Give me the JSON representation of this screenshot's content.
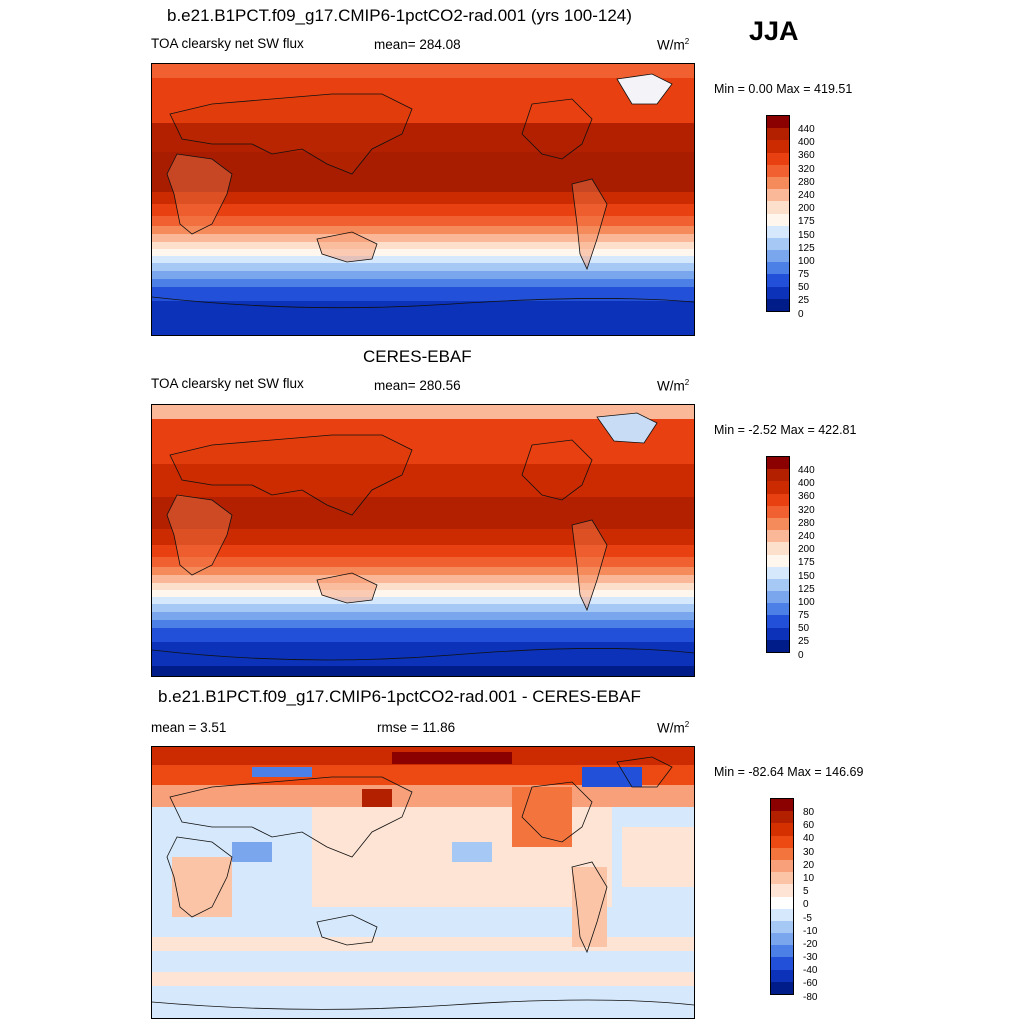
{
  "season": "JJA",
  "panels": [
    {
      "title": "b.e21.B1PCT.f09_g17.CMIP6-1pctCO2-rad.001 (yrs 100-124)",
      "left_label": "TOA clearsky net SW flux",
      "center_label": "mean= 284.08",
      "units": "W/m",
      "units_sup": "2",
      "minmax": "Min =   0.00 Max = 419.51",
      "colorbar": {
        "labels": [
          "440",
          "400",
          "360",
          "320",
          "280",
          "240",
          "200",
          "175",
          "150",
          "125",
          "100",
          "75",
          "50",
          "25",
          "0"
        ],
        "colors": [
          "#8b0000",
          "#b22000",
          "#cc2a00",
          "#e84010",
          "#f06030",
          "#f58a5a",
          "#fbb898",
          "#fde0cc",
          "#fff6ee",
          "#d6e8fb",
          "#a6c8f5",
          "#7aa6ee",
          "#4c80e6",
          "#2350d8",
          "#0b32b8",
          "#001c88"
        ]
      },
      "map_data": {
        "field": "TOA clearsky net SW flux",
        "units": "W/m2",
        "mean": 284.08,
        "min": 0.0,
        "max": 419.51,
        "bands_north_to_south": [
          {
            "from": 90,
            "to": 80,
            "value_range": "280-320"
          },
          {
            "from": 80,
            "to": 60,
            "value_range": "320-360"
          },
          {
            "from": 60,
            "to": 45,
            "value_range": "360-400"
          },
          {
            "from": 45,
            "to": 10,
            "value_range": "400-440"
          },
          {
            "from": 10,
            "to": -10,
            "value_range": "320-360"
          },
          {
            "from": -10,
            "to": -25,
            "value_range": "280-320"
          },
          {
            "from": -25,
            "to": -35,
            "value_range": "200-280"
          },
          {
            "from": -35,
            "to": -45,
            "value_range": "150-200"
          },
          {
            "from": -45,
            "to": -55,
            "value_range": "75-150"
          },
          {
            "from": -55,
            "to": -90,
            "value_range": "0-75"
          }
        ]
      }
    },
    {
      "title": "CERES-EBAF",
      "left_label": "TOA clearsky net SW flux",
      "center_label": "mean= 280.56",
      "units": "W/m",
      "units_sup": "2",
      "minmax": "Min =  -2.52 Max = 422.81",
      "colorbar": {
        "labels": [
          "440",
          "400",
          "360",
          "320",
          "280",
          "240",
          "200",
          "175",
          "150",
          "125",
          "100",
          "75",
          "50",
          "25",
          "0"
        ],
        "colors": [
          "#8b0000",
          "#b22000",
          "#cc2a00",
          "#e84010",
          "#f06030",
          "#f58a5a",
          "#fbb898",
          "#fde0cc",
          "#fff6ee",
          "#d6e8fb",
          "#a6c8f5",
          "#7aa6ee",
          "#4c80e6",
          "#2350d8",
          "#0b32b8",
          "#001c88"
        ]
      },
      "map_data": {
        "field": "TOA clearsky net SW flux",
        "units": "W/m2",
        "mean": 280.56,
        "min": -2.52,
        "max": 422.81,
        "bands_north_to_south": [
          {
            "from": 90,
            "to": 80,
            "value_range": "240-280"
          },
          {
            "from": 80,
            "to": 60,
            "value_range": "320-360"
          },
          {
            "from": 60,
            "to": 45,
            "value_range": "360-400"
          },
          {
            "from": 45,
            "to": 10,
            "value_range": "400-440"
          },
          {
            "from": 10,
            "to": -10,
            "value_range": "320-360"
          },
          {
            "from": -10,
            "to": -25,
            "value_range": "280-320"
          },
          {
            "from": -25,
            "to": -35,
            "value_range": "200-280"
          },
          {
            "from": -35,
            "to": -45,
            "value_range": "150-200"
          },
          {
            "from": -45,
            "to": -55,
            "value_range": "75-150"
          },
          {
            "from": -55,
            "to": -90,
            "value_range": "0-75"
          }
        ]
      }
    },
    {
      "title": "b.e21.B1PCT.f09_g17.CMIP6-1pctCO2-rad.001 - CERES-EBAF",
      "left_label": "mean =   3.51",
      "center_label": "rmse =  11.86",
      "units": "W/m",
      "units_sup": "2",
      "minmax": "Min = -82.64 Max = 146.69",
      "colorbar": {
        "labels": [
          "80",
          "60",
          "40",
          "30",
          "20",
          "10",
          "5",
          "0",
          "-5",
          "-10",
          "-20",
          "-30",
          "-40",
          "-60",
          "-80"
        ],
        "colors": [
          "#8b0000",
          "#b22000",
          "#d43000",
          "#ec4a12",
          "#f4743e",
          "#f8a07a",
          "#fbc4a6",
          "#fde4d4",
          "#ffffff",
          "#d6e8fb",
          "#a6c8f5",
          "#7aa6ee",
          "#4c80e6",
          "#2350d8",
          "#0b32b8",
          "#001c88"
        ]
      },
      "map_data": {
        "field": "difference",
        "units": "W/m2",
        "mean": 3.51,
        "rmse": 11.86,
        "min": -82.64,
        "max": 146.69
      }
    }
  ]
}
